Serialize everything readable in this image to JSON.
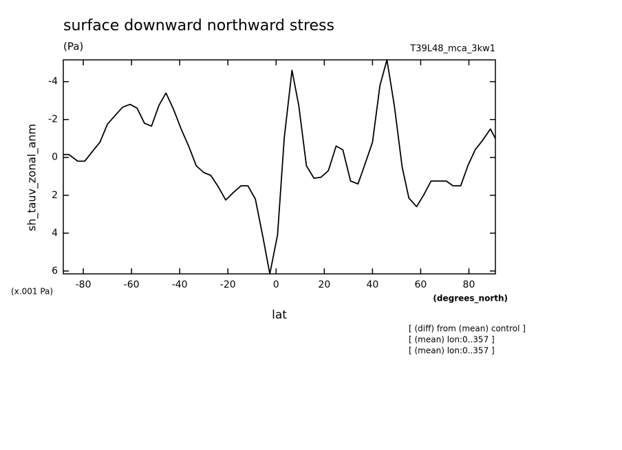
{
  "chart_data": {
    "type": "line",
    "title": "surface downward northward stress",
    "units": "(Pa)",
    "run_label": "T39L48_mca_3kw1",
    "y_label": "sh_tauv_zonal_anm",
    "y_scale_label": "(x.001 Pa)",
    "x_units": "(degrees_north)",
    "x_label": "lat",
    "notes": [
      "[ (diff) from (mean) control ]",
      "[ (mean) lon:0..357 ]",
      "[ (mean) lon:0..357 ]"
    ],
    "x": [
      -88.3,
      -86,
      -82.3,
      -79.4,
      -76.3,
      -73.1,
      -70,
      -66.9,
      -63.7,
      -60.6,
      -57.7,
      -54.6,
      -51.7,
      -48.6,
      -45.7,
      -42.6,
      -39.4,
      -36.3,
      -33.1,
      -30,
      -27.1,
      -24,
      -20.9,
      -17.7,
      -14.6,
      -11.7,
      -8.6,
      -5.4,
      -2.6,
      0.6,
      3.4,
      6.6,
      9.4,
      12.6,
      15.7,
      18.6,
      21.7,
      24.9,
      27.7,
      30.9,
      34,
      36.9,
      40,
      43.1,
      46,
      49.1,
      52.3,
      55.1,
      58.3,
      61.4,
      64.3,
      67.4,
      70.6,
      73.4,
      76.6,
      79.7,
      82.6,
      85.7,
      88.9,
      91
    ],
    "series": [
      {
        "name": "sh_tauv_zonal_anm",
        "color": "#000000",
        "values": [
          -0.15,
          -0.15,
          0.2,
          0.2,
          -0.3,
          -0.8,
          -1.75,
          -2.2,
          -2.65,
          -2.8,
          -2.6,
          -1.8,
          -1.65,
          -2.75,
          -3.4,
          -2.55,
          -1.5,
          -0.6,
          0.45,
          0.8,
          0.95,
          1.55,
          2.25,
          1.85,
          1.5,
          1.5,
          2.2,
          4.25,
          6.15,
          4.1,
          -1.05,
          -4.6,
          -2.75,
          0.45,
          1.1,
          1.05,
          0.7,
          -0.6,
          -0.4,
          1.25,
          1.4,
          0.35,
          -0.8,
          -3.8,
          -5.15,
          -2.7,
          0.5,
          2.15,
          2.6,
          1.95,
          1.25,
          1.25,
          1.25,
          1.5,
          1.5,
          0.4,
          -0.4,
          -0.9,
          -1.5,
          -1.0
        ]
      }
    ],
    "xlim": [
      -88.3,
      91
    ],
    "xticks": [
      -80,
      -60,
      -40,
      -20,
      0,
      20,
      40,
      60,
      80
    ],
    "ylim": [
      6.15,
      -5.15
    ],
    "yticks": [
      -4,
      -2,
      0,
      2,
      4,
      6
    ]
  }
}
